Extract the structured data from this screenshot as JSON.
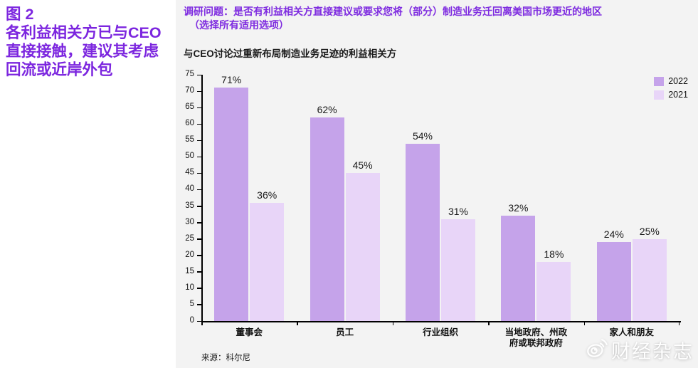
{
  "left_panel": {
    "figure_label": "图 2",
    "title_lines": [
      "各利益相关方已与CEO",
      "直接接触，建议其考虑",
      "回流或近岸外包"
    ]
  },
  "question": {
    "line1": "调研问题：是否有利益相关方直接建议或要求您将（部分）制造业务迁回离美国市场更近的地区",
    "line2": "（选择所有适用选项）"
  },
  "chart_data": {
    "type": "bar",
    "title": "与CEO讨论过重新布局制造业务足迹的利益相关方",
    "categories": [
      "董事会",
      "员工",
      "行业组织",
      "当地政府、州政\n府或联邦政府",
      "家人和朋友"
    ],
    "series": [
      {
        "name": "2022",
        "color": "#c5a3ea",
        "values": [
          71,
          62,
          54,
          32,
          24
        ]
      },
      {
        "name": "2021",
        "color": "#e8d5f8",
        "values": [
          36,
          45,
          31,
          18,
          25
        ]
      }
    ],
    "value_suffix": "%",
    "ylim": [
      0,
      75
    ],
    "ytick_step": 5,
    "legend_position": "top-right",
    "grid": false
  },
  "source": "来源：科尔尼",
  "watermark": {
    "text": "财经杂志",
    "icon": "weibo-icon"
  },
  "colors": {
    "title_purple": "#7c26df",
    "question_purple": "#7e2be0",
    "panel_background": "#f3f3f3",
    "axis_black": "#000000"
  }
}
